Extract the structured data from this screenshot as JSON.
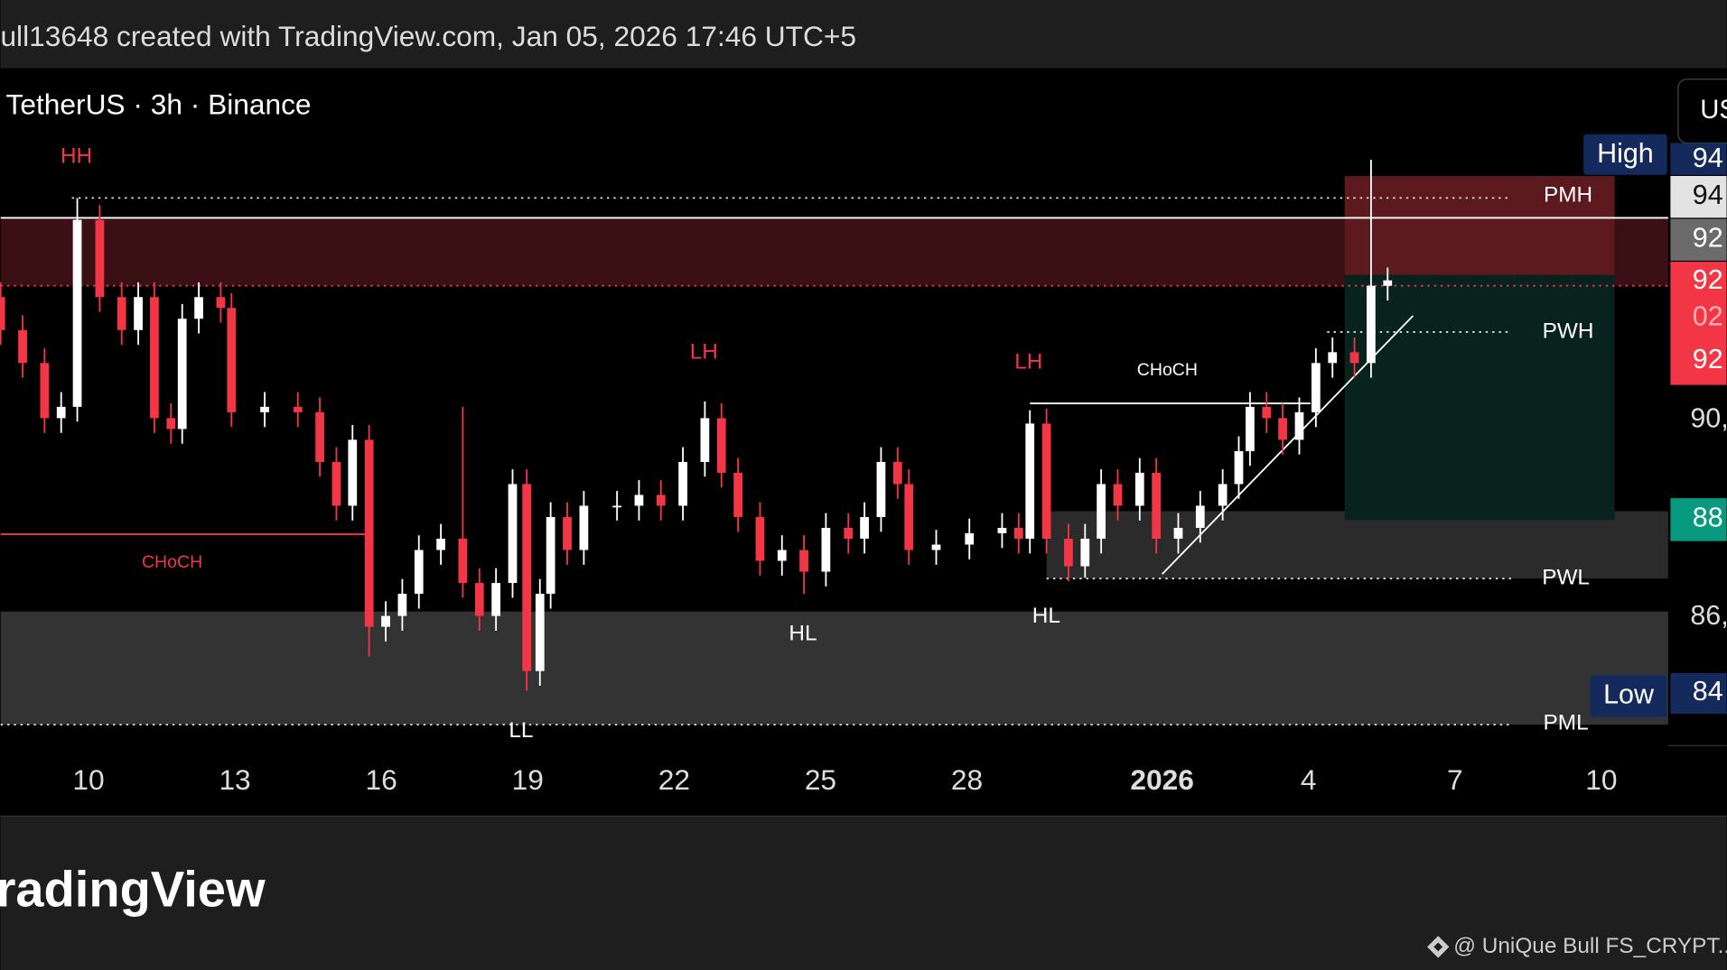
{
  "header": "ull13648 created with TradingView.com, Jan 05, 2026 17:46 UTC+5",
  "symbol": "TetherUS · 3h · Binance",
  "currency_button": "US",
  "footer": {
    "logo": "radingView",
    "credit": "@ UniQue Bull FS_CRYPT..."
  },
  "structure_labels": {
    "hh": "HH",
    "lh1": "LH",
    "lh2": "LH",
    "choch_up": "CHoCH",
    "choch_down": "CHoCH",
    "hl1": "HL",
    "hl2": "HL",
    "ll": "LL",
    "pmh": "PMH",
    "pwh": "PWH",
    "pwl": "PWL",
    "pml": "PML"
  },
  "price_tags": [
    "High",
    "94",
    "94",
    "92",
    "92",
    "02",
    "92",
    "88",
    "Low",
    "84"
  ],
  "chart_data": {
    "type": "candlestick",
    "up_color": "#ffffff",
    "down_color": "#f23645",
    "grid": false,
    "xlim": [
      8.195,
      42.37
    ],
    "ylim": [
      83116,
      97152
    ],
    "xticks": [
      10,
      13,
      16,
      19,
      22,
      25,
      28,
      {
        "value": 32,
        "label": "2026"
      },
      {
        "value": 35,
        "label": "4"
      },
      {
        "value": 38,
        "label": "7"
      },
      {
        "value": 41,
        "label": "10"
      }
    ],
    "yticks": [
      {
        "value": 90000,
        "label": "90,"
      },
      {
        "value": 86000,
        "label": "86,"
      }
    ],
    "x": [
      8.2,
      8.65,
      9.1,
      9.44,
      9.77,
      10.23,
      10.68,
      11.02,
      11.35,
      11.69,
      11.92,
      12.26,
      12.71,
      12.93,
      13.61,
      14.29,
      14.74,
      15.08,
      15.41,
      15.75,
      16.09,
      16.43,
      16.77,
      17.22,
      17.67,
      18.01,
      18.35,
      18.69,
      18.98,
      19.25,
      19.47,
      19.81,
      20.15,
      20.83,
      21.28,
      21.73,
      22.18,
      22.63,
      22.97,
      23.31,
      23.76,
      24.21,
      24.66,
      25.11,
      25.57,
      25.9,
      26.24,
      26.58,
      26.81,
      27.37,
      28.05,
      28.72,
      29.06,
      29.29,
      29.63,
      30.08,
      30.42,
      30.75,
      31.09,
      31.54,
      31.88,
      32.33,
      32.78,
      33.24,
      33.57,
      33.8,
      34.14,
      34.47,
      34.81,
      35.15,
      35.49,
      35.94,
      36.28,
      36.62
    ],
    "open": [
      92500,
      91830,
      91160,
      90040,
      90270,
      94070,
      92500,
      91830,
      92500,
      90040,
      89820,
      92060,
      92500,
      92280,
      90160,
      90270,
      90160,
      89150,
      88260,
      89600,
      85800,
      86020,
      86470,
      87360,
      87590,
      86690,
      86020,
      86690,
      88700,
      84900,
      86470,
      88030,
      87360,
      88260,
      88260,
      88480,
      88260,
      89150,
      90040,
      88930,
      88030,
      87140,
      87360,
      86920,
      87810,
      87590,
      88030,
      89150,
      88700,
      87360,
      87470,
      87700,
      87810,
      87590,
      89930,
      87590,
      87030,
      87590,
      88700,
      88260,
      88930,
      87590,
      87810,
      88260,
      88700,
      89370,
      90270,
      90040,
      89600,
      90160,
      91160,
      91380,
      91160,
      92730
    ],
    "high": [
      92800,
      92130,
      91460,
      90570,
      94510,
      94370,
      92800,
      92800,
      92800,
      90340,
      92360,
      92800,
      92800,
      92580,
      90570,
      90570,
      90460,
      89450,
      89900,
      89900,
      86320,
      86770,
      87660,
      87890,
      90270,
      86990,
      86990,
      89000,
      89000,
      86770,
      88330,
      88330,
      88560,
      88560,
      88780,
      88780,
      89450,
      90380,
      90340,
      89230,
      88330,
      87660,
      87660,
      88110,
      88110,
      88330,
      89450,
      89450,
      89000,
      87770,
      88000,
      88110,
      88110,
      90200,
      90230,
      87890,
      87890,
      89000,
      89000,
      89230,
      89230,
      88110,
      88560,
      89000,
      89670,
      90570,
      90570,
      90340,
      90460,
      91460,
      91680,
      91680,
      95290,
      93100
    ],
    "low": [
      91530,
      90860,
      89740,
      89740,
      89970,
      92200,
      91530,
      91530,
      89740,
      89520,
      89520,
      91760,
      91980,
      89860,
      89860,
      89860,
      88850,
      87960,
      87960,
      85200,
      85500,
      85720,
      86170,
      87060,
      86390,
      85720,
      85720,
      86390,
      84500,
      84600,
      86170,
      87060,
      87060,
      87960,
      87960,
      87960,
      87960,
      88850,
      88630,
      87730,
      86840,
      86840,
      86470,
      86620,
      87290,
      87290,
      87730,
      88400,
      87060,
      87060,
      87170,
      87400,
      87290,
      87290,
      87290,
      86730,
      86800,
      87290,
      87960,
      87960,
      87290,
      87290,
      87510,
      87960,
      88400,
      89070,
      89740,
      89300,
      89300,
      89860,
      90860,
      90860,
      90860,
      92430
    ],
    "close": [
      91830,
      91160,
      90040,
      90270,
      94070,
      92500,
      91830,
      92500,
      90040,
      89820,
      92060,
      92500,
      92280,
      90160,
      90270,
      90160,
      89150,
      88260,
      89600,
      85800,
      86020,
      86470,
      87360,
      87590,
      86690,
      86020,
      86690,
      88700,
      84900,
      86470,
      88030,
      87360,
      88260,
      88260,
      88480,
      88260,
      89150,
      90040,
      88930,
      88030,
      87140,
      87360,
      86920,
      87810,
      87590,
      88030,
      89150,
      88700,
      87360,
      87470,
      87700,
      87810,
      87590,
      89930,
      87590,
      87030,
      87590,
      88700,
      88260,
      88930,
      87590,
      87810,
      88260,
      88700,
      89370,
      90270,
      90040,
      89600,
      90160,
      91160,
      91380,
      91160,
      92730,
      92840
    ],
    "zones": [
      {
        "from": 8.2,
        "to": 42.37,
        "top": 86110,
        "bottom": 83810,
        "color": "#333333"
      },
      {
        "from": 29.63,
        "to": 42.37,
        "top": 88150,
        "bottom": 86780,
        "color": "#2b2b2b"
      },
      {
        "from": 8.2,
        "to": 42.37,
        "top": 94110,
        "bottom": 92730,
        "color": "#3a1015"
      },
      {
        "from": 35.74,
        "to": 41.27,
        "top": 94960,
        "bottom": 92950,
        "color": "#5c1a1f"
      },
      {
        "from": 35.74,
        "to": 41.27,
        "top": 92950,
        "bottom": 87970,
        "color": "#08221e"
      }
    ],
    "lines": [
      {
        "from": 9.66,
        "to": 39.15,
        "price": 94515,
        "color": "#dddddd",
        "style": "dotted"
      },
      {
        "from": 8.2,
        "to": 42.37,
        "price": 94110,
        "color": "#ffffff",
        "style": "solid"
      },
      {
        "from": 8.2,
        "to": 42.37,
        "price": 92730,
        "color": "#f23645",
        "style": "dotted"
      },
      {
        "from": 35.38,
        "to": 39.15,
        "price": 91790,
        "color": "#dddddd",
        "style": "dotted"
      },
      {
        "from": 29.63,
        "to": 39.15,
        "price": 86780,
        "color": "#dddddd",
        "style": "dotted"
      },
      {
        "from": 8.2,
        "to": 39.15,
        "price": 83810,
        "color": "#dddddd",
        "style": "dotted"
      },
      {
        "from": 8.2,
        "to": 15.71,
        "price": 87680,
        "color": "#f23645",
        "style": "solid"
      },
      {
        "from": 29.29,
        "to": 35.04,
        "price": 90340,
        "color": "#ffffff",
        "style": "solid"
      }
    ],
    "trendline": {
      "x": [
        32.0,
        37.14
      ],
      "y": [
        86870,
        92120
      ],
      "color": "#ffffff"
    }
  }
}
